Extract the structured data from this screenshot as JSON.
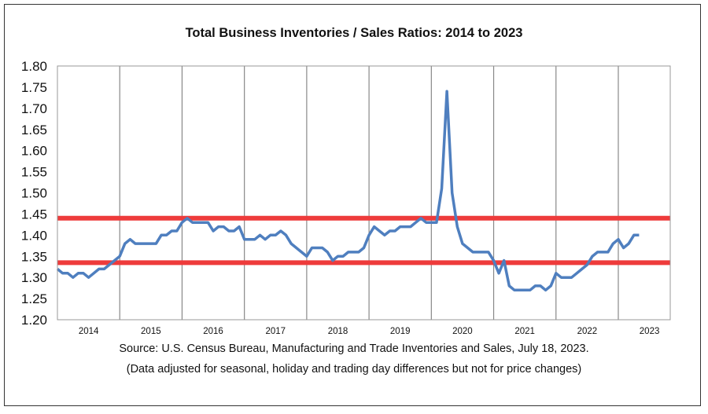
{
  "chart_data": {
    "type": "line",
    "title": "Total Business Inventories / Sales Ratios: 2014 to 2023",
    "xlabel": "",
    "ylabel": "",
    "ylim": [
      1.2,
      1.8
    ],
    "y_ticks": [
      "1.20",
      "1.25",
      "1.30",
      "1.35",
      "1.40",
      "1.45",
      "1.50",
      "1.55",
      "1.60",
      "1.65",
      "1.70",
      "1.75",
      "1.80"
    ],
    "x_ticks": [
      "2014",
      "2015",
      "2016",
      "2017",
      "2018",
      "2019",
      "2020",
      "2021",
      "2022",
      "2023"
    ],
    "grid": "vertical at year boundaries",
    "frequency": "monthly, Jan 2014 - May 2023",
    "series": [
      {
        "name": "Inventories/Sales Ratio",
        "color": "#4f7fbf",
        "values": [
          1.32,
          1.31,
          1.31,
          1.3,
          1.31,
          1.31,
          1.3,
          1.31,
          1.32,
          1.32,
          1.33,
          1.34,
          1.35,
          1.38,
          1.39,
          1.38,
          1.38,
          1.38,
          1.38,
          1.38,
          1.4,
          1.4,
          1.41,
          1.41,
          1.43,
          1.44,
          1.43,
          1.43,
          1.43,
          1.43,
          1.41,
          1.42,
          1.42,
          1.41,
          1.41,
          1.42,
          1.39,
          1.39,
          1.39,
          1.4,
          1.39,
          1.4,
          1.4,
          1.41,
          1.4,
          1.38,
          1.37,
          1.36,
          1.35,
          1.37,
          1.37,
          1.37,
          1.36,
          1.34,
          1.35,
          1.35,
          1.36,
          1.36,
          1.36,
          1.37,
          1.4,
          1.42,
          1.41,
          1.4,
          1.41,
          1.41,
          1.42,
          1.42,
          1.42,
          1.43,
          1.44,
          1.43,
          1.43,
          1.43,
          1.51,
          1.74,
          1.5,
          1.42,
          1.38,
          1.37,
          1.36,
          1.36,
          1.36,
          1.36,
          1.34,
          1.31,
          1.34,
          1.28,
          1.27,
          1.27,
          1.27,
          1.27,
          1.28,
          1.28,
          1.27,
          1.28,
          1.31,
          1.3,
          1.3,
          1.3,
          1.31,
          1.32,
          1.33,
          1.35,
          1.36,
          1.36,
          1.36,
          1.38,
          1.39,
          1.37,
          1.38,
          1.4,
          1.4
        ]
      }
    ],
    "reference_lines": [
      {
        "value": 1.44,
        "color": "#ee3b3b"
      },
      {
        "value": 1.335,
        "color": "#ee3b3b"
      }
    ]
  },
  "source_line1": "Source: U.S. Census Bureau, Manufacturing and Trade Inventories and Sales, July 18, 2023.",
  "source_line2": "(Data adjusted for seasonal, holiday and trading day differences but not for price changes)"
}
